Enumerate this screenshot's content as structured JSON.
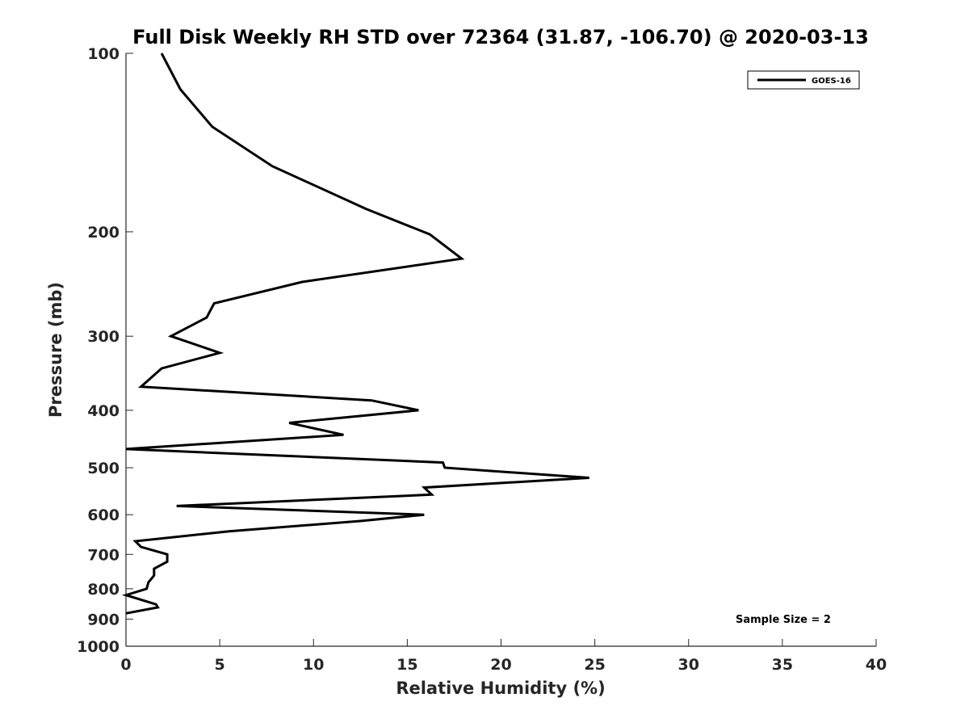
{
  "chart_data": {
    "type": "line",
    "title": "Full Disk Weekly RH STD over 72364 (31.87, -106.70) @ 2020-03-13",
    "xlabel": "Relative Humidity (%)",
    "ylabel": "Pressure (mb)",
    "xlim": [
      0,
      40
    ],
    "ylim": [
      100,
      1000
    ],
    "yscale": "log",
    "yreversed": true,
    "xticks": [
      0,
      5,
      10,
      15,
      20,
      25,
      30,
      35,
      40
    ],
    "yticks": [
      100,
      200,
      300,
      400,
      500,
      600,
      700,
      800,
      900,
      1000
    ],
    "grid": false,
    "legend_position": "top-right",
    "annotation": "Sample Size = 2",
    "series": [
      {
        "name": "GOES-16",
        "color": "#000000",
        "x": [
          1.9,
          2.9,
          4.6,
          7.8,
          12.8,
          16.2,
          17.9,
          9.4,
          4.7,
          4.3,
          2.4,
          5.0,
          1.9,
          0.8,
          13.1,
          15.6,
          8.7,
          11.6,
          0.0,
          16.9,
          17.0,
          24.7,
          15.9,
          16.3,
          2.7,
          15.9,
          12.5,
          5.5,
          0.5,
          0.8,
          2.2,
          2.2,
          1.5,
          1.5,
          1.2,
          1.1,
          0.0,
          1.6,
          1.7,
          0.0
        ],
        "y": [
          100,
          115,
          133,
          155,
          183,
          202,
          222,
          243,
          264,
          279,
          300,
          320,
          340,
          365,
          385,
          400,
          420,
          440,
          465,
          490,
          500,
          520,
          540,
          555,
          580,
          600,
          615,
          640,
          665,
          680,
          700,
          720,
          740,
          760,
          780,
          800,
          820,
          850,
          860,
          880
        ]
      }
    ]
  }
}
